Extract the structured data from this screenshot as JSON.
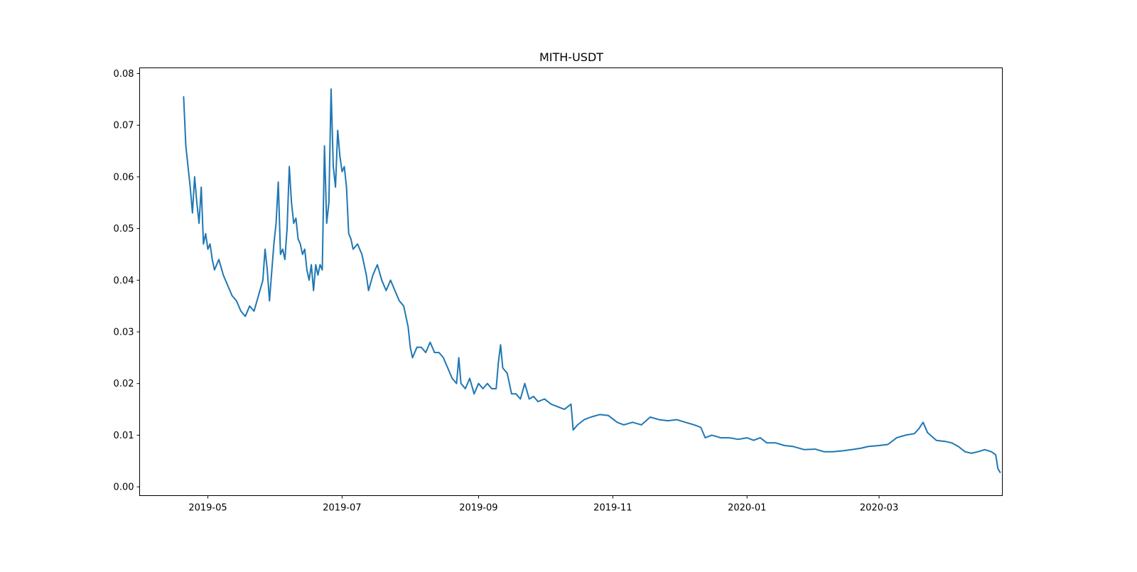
{
  "chart_data": {
    "type": "line",
    "title": "MITH-USDT",
    "xlabel": "",
    "ylabel": "",
    "x_axis": "date",
    "xlim": [
      "2019-03-31",
      "2020-04-26"
    ],
    "ylim": [
      -0.0017,
      0.0811
    ],
    "grid": false,
    "legend": "none",
    "line_color": "#1f77b4",
    "x_ticks": [
      "2019-05",
      "2019-07",
      "2019-09",
      "2019-11",
      "2020-01",
      "2020-03"
    ],
    "x_tick_dates": [
      "2019-05-01",
      "2019-07-01",
      "2019-09-01",
      "2019-11-01",
      "2020-01-01",
      "2020-03-01"
    ],
    "y_ticks": [
      "0.00",
      "0.01",
      "0.02",
      "0.03",
      "0.04",
      "0.05",
      "0.06",
      "0.07",
      "0.08"
    ],
    "y_tick_values": [
      0.0,
      0.01,
      0.02,
      0.03,
      0.04,
      0.05,
      0.06,
      0.07,
      0.08
    ],
    "series": [
      {
        "points": [
          [
            "2019-04-20",
            0.0755
          ],
          [
            "2019-04-21",
            0.066
          ],
          [
            "2019-04-22",
            0.062
          ],
          [
            "2019-04-23",
            0.058
          ],
          [
            "2019-04-24",
            0.053
          ],
          [
            "2019-04-25",
            0.06
          ],
          [
            "2019-04-26",
            0.055
          ],
          [
            "2019-04-27",
            0.051
          ],
          [
            "2019-04-28",
            0.058
          ],
          [
            "2019-04-29",
            0.047
          ],
          [
            "2019-04-30",
            0.049
          ],
          [
            "2019-05-01",
            0.046
          ],
          [
            "2019-05-02",
            0.047
          ],
          [
            "2019-05-03",
            0.044
          ],
          [
            "2019-05-04",
            0.042
          ],
          [
            "2019-05-06",
            0.044
          ],
          [
            "2019-05-08",
            0.041
          ],
          [
            "2019-05-10",
            0.039
          ],
          [
            "2019-05-12",
            0.037
          ],
          [
            "2019-05-14",
            0.036
          ],
          [
            "2019-05-16",
            0.034
          ],
          [
            "2019-05-18",
            0.033
          ],
          [
            "2019-05-20",
            0.035
          ],
          [
            "2019-05-22",
            0.034
          ],
          [
            "2019-05-24",
            0.037
          ],
          [
            "2019-05-26",
            0.04
          ],
          [
            "2019-05-27",
            0.046
          ],
          [
            "2019-05-28",
            0.042
          ],
          [
            "2019-05-29",
            0.036
          ],
          [
            "2019-05-31",
            0.047
          ],
          [
            "2019-06-01",
            0.051
          ],
          [
            "2019-06-02",
            0.059
          ],
          [
            "2019-06-03",
            0.045
          ],
          [
            "2019-06-04",
            0.046
          ],
          [
            "2019-06-05",
            0.044
          ],
          [
            "2019-06-06",
            0.05
          ],
          [
            "2019-06-07",
            0.062
          ],
          [
            "2019-06-08",
            0.055
          ],
          [
            "2019-06-09",
            0.051
          ],
          [
            "2019-06-10",
            0.052
          ],
          [
            "2019-06-11",
            0.048
          ],
          [
            "2019-06-12",
            0.047
          ],
          [
            "2019-06-13",
            0.045
          ],
          [
            "2019-06-14",
            0.046
          ],
          [
            "2019-06-15",
            0.042
          ],
          [
            "2019-06-16",
            0.04
          ],
          [
            "2019-06-17",
            0.043
          ],
          [
            "2019-06-18",
            0.038
          ],
          [
            "2019-06-19",
            0.043
          ],
          [
            "2019-06-20",
            0.041
          ],
          [
            "2019-06-21",
            0.043
          ],
          [
            "2019-06-22",
            0.042
          ],
          [
            "2019-06-23",
            0.066
          ],
          [
            "2019-06-24",
            0.051
          ],
          [
            "2019-06-25",
            0.055
          ],
          [
            "2019-06-26",
            0.077
          ],
          [
            "2019-06-27",
            0.062
          ],
          [
            "2019-06-28",
            0.058
          ],
          [
            "2019-06-29",
            0.069
          ],
          [
            "2019-06-30",
            0.064
          ],
          [
            "2019-07-01",
            0.061
          ],
          [
            "2019-07-02",
            0.062
          ],
          [
            "2019-07-03",
            0.058
          ],
          [
            "2019-07-04",
            0.049
          ],
          [
            "2019-07-05",
            0.048
          ],
          [
            "2019-07-06",
            0.046
          ],
          [
            "2019-07-08",
            0.047
          ],
          [
            "2019-07-10",
            0.045
          ],
          [
            "2019-07-12",
            0.041
          ],
          [
            "2019-07-13",
            0.038
          ],
          [
            "2019-07-15",
            0.041
          ],
          [
            "2019-07-17",
            0.043
          ],
          [
            "2019-07-19",
            0.04
          ],
          [
            "2019-07-21",
            0.038
          ],
          [
            "2019-07-23",
            0.04
          ],
          [
            "2019-07-25",
            0.038
          ],
          [
            "2019-07-27",
            0.036
          ],
          [
            "2019-07-29",
            0.035
          ],
          [
            "2019-07-31",
            0.031
          ],
          [
            "2019-08-01",
            0.027
          ],
          [
            "2019-08-02",
            0.025
          ],
          [
            "2019-08-04",
            0.027
          ],
          [
            "2019-08-06",
            0.027
          ],
          [
            "2019-08-08",
            0.026
          ],
          [
            "2019-08-10",
            0.028
          ],
          [
            "2019-08-12",
            0.026
          ],
          [
            "2019-08-14",
            0.026
          ],
          [
            "2019-08-16",
            0.025
          ],
          [
            "2019-08-18",
            0.023
          ],
          [
            "2019-08-20",
            0.021
          ],
          [
            "2019-08-22",
            0.02
          ],
          [
            "2019-08-23",
            0.025
          ],
          [
            "2019-08-24",
            0.02
          ],
          [
            "2019-08-26",
            0.019
          ],
          [
            "2019-08-28",
            0.021
          ],
          [
            "2019-08-30",
            0.018
          ],
          [
            "2019-09-01",
            0.02
          ],
          [
            "2019-09-03",
            0.019
          ],
          [
            "2019-09-05",
            0.02
          ],
          [
            "2019-09-07",
            0.019
          ],
          [
            "2019-09-09",
            0.019
          ],
          [
            "2019-09-10",
            0.024
          ],
          [
            "2019-09-11",
            0.0275
          ],
          [
            "2019-09-12",
            0.023
          ],
          [
            "2019-09-14",
            0.022
          ],
          [
            "2019-09-16",
            0.018
          ],
          [
            "2019-09-18",
            0.018
          ],
          [
            "2019-09-20",
            0.017
          ],
          [
            "2019-09-22",
            0.02
          ],
          [
            "2019-09-24",
            0.017
          ],
          [
            "2019-09-26",
            0.0175
          ],
          [
            "2019-09-28",
            0.0165
          ],
          [
            "2019-10-01",
            0.017
          ],
          [
            "2019-10-04",
            0.016
          ],
          [
            "2019-10-07",
            0.0155
          ],
          [
            "2019-10-10",
            0.015
          ],
          [
            "2019-10-13",
            0.016
          ],
          [
            "2019-10-14",
            0.011
          ],
          [
            "2019-10-16",
            0.012
          ],
          [
            "2019-10-19",
            0.013
          ],
          [
            "2019-10-22",
            0.0135
          ],
          [
            "2019-10-26",
            0.014
          ],
          [
            "2019-10-30",
            0.0138
          ],
          [
            "2019-11-03",
            0.0125
          ],
          [
            "2019-11-06",
            0.012
          ],
          [
            "2019-11-10",
            0.0125
          ],
          [
            "2019-11-14",
            0.012
          ],
          [
            "2019-11-18",
            0.0135
          ],
          [
            "2019-11-22",
            0.013
          ],
          [
            "2019-11-26",
            0.0128
          ],
          [
            "2019-11-30",
            0.013
          ],
          [
            "2019-12-04",
            0.0125
          ],
          [
            "2019-12-08",
            0.012
          ],
          [
            "2019-12-11",
            0.0115
          ],
          [
            "2019-12-13",
            0.0095
          ],
          [
            "2019-12-16",
            0.01
          ],
          [
            "2019-12-20",
            0.0095
          ],
          [
            "2019-12-24",
            0.0095
          ],
          [
            "2019-12-28",
            0.0092
          ],
          [
            "2020-01-01",
            0.0095
          ],
          [
            "2020-01-04",
            0.009
          ],
          [
            "2020-01-07",
            0.0095
          ],
          [
            "2020-01-10",
            0.0085
          ],
          [
            "2020-01-14",
            0.0085
          ],
          [
            "2020-01-18",
            0.008
          ],
          [
            "2020-01-22",
            0.0078
          ],
          [
            "2020-01-27",
            0.0072
          ],
          [
            "2020-02-01",
            0.0073
          ],
          [
            "2020-02-05",
            0.0068
          ],
          [
            "2020-02-09",
            0.0068
          ],
          [
            "2020-02-14",
            0.007
          ],
          [
            "2020-02-19",
            0.0073
          ],
          [
            "2020-02-22",
            0.0075
          ],
          [
            "2020-02-25",
            0.0078
          ],
          [
            "2020-03-01",
            0.008
          ],
          [
            "2020-03-05",
            0.0082
          ],
          [
            "2020-03-09",
            0.0095
          ],
          [
            "2020-03-13",
            0.01
          ],
          [
            "2020-03-17",
            0.0103
          ],
          [
            "2020-03-19",
            0.0112
          ],
          [
            "2020-03-21",
            0.0125
          ],
          [
            "2020-03-23",
            0.0105
          ],
          [
            "2020-03-27",
            0.009
          ],
          [
            "2020-03-31",
            0.0088
          ],
          [
            "2020-04-03",
            0.0085
          ],
          [
            "2020-04-06",
            0.0078
          ],
          [
            "2020-04-09",
            0.0068
          ],
          [
            "2020-04-12",
            0.0065
          ],
          [
            "2020-04-15",
            0.0068
          ],
          [
            "2020-04-18",
            0.0072
          ],
          [
            "2020-04-21",
            0.0068
          ],
          [
            "2020-04-23",
            0.0062
          ],
          [
            "2020-04-24",
            0.0035
          ],
          [
            "2020-04-25",
            0.0028
          ]
        ]
      }
    ]
  }
}
